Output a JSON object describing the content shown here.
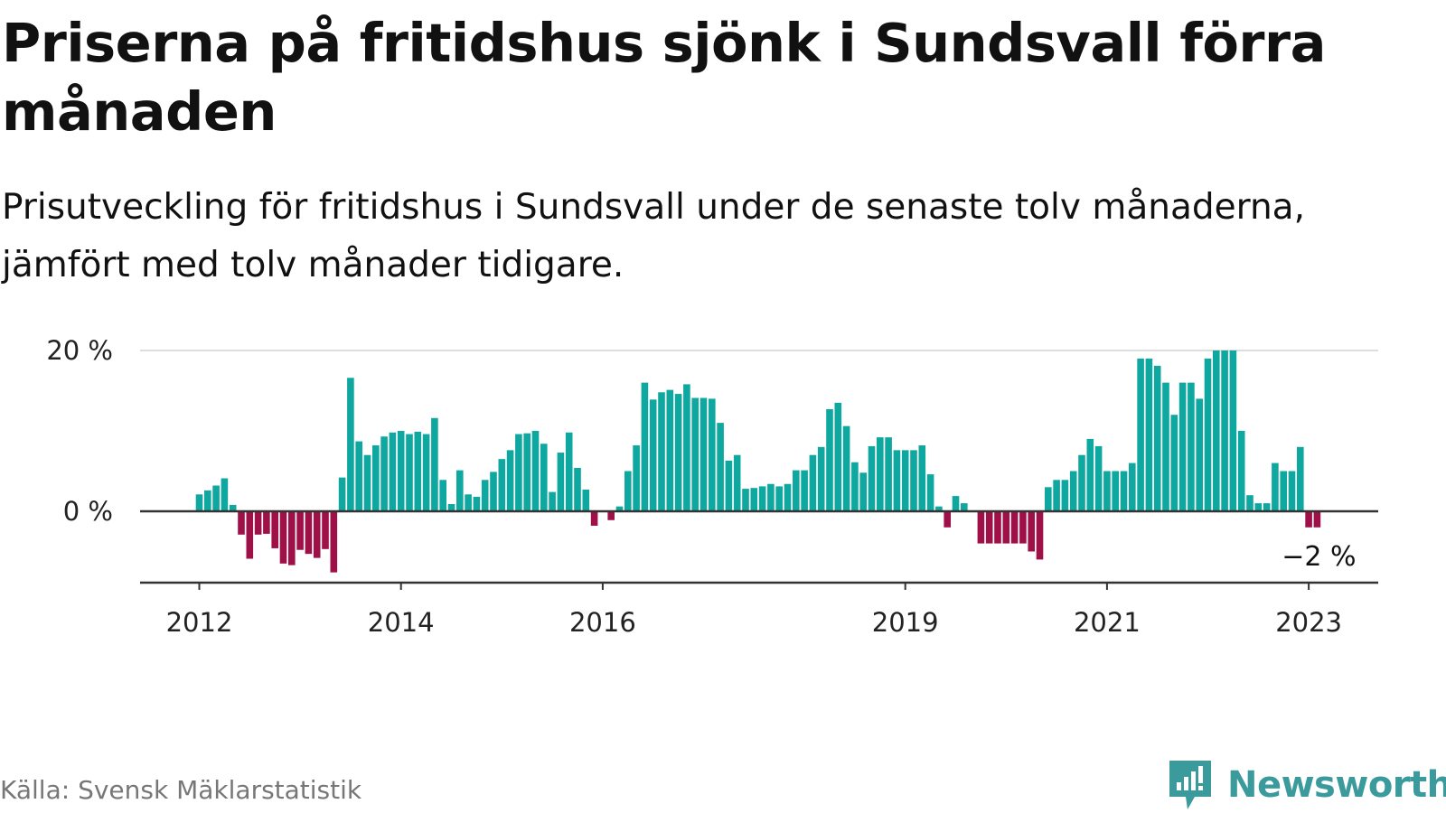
{
  "header": {
    "title": "Priserna på fritidshus sjönk i Sundsvall förra månaden",
    "subtitle": "Prisutveckling för fritidshus i Sundsvall under de senaste tolv månaderna, jämfört med tolv månader tidigare."
  },
  "footer": {
    "source": "Källa: Svensk Mäklarstatistik",
    "brand": "Newsworthy"
  },
  "colors": {
    "positive": "#0fa8a0",
    "negative": "#a01048",
    "brand": "#3b9a9c"
  },
  "chart_data": {
    "type": "bar",
    "title": "Priserna på fritidshus sjönk i Sundsvall förra månaden",
    "subtitle": "Prisutveckling för fritidshus i Sundsvall under de senaste tolv månaderna, jämfört med tolv månader tidigare.",
    "xlabel": "",
    "ylabel": "",
    "x_start": "2012-01",
    "x_end": "2023-03",
    "x_ticks": [
      {
        "label": "2012",
        "date": "2012-01"
      },
      {
        "label": "2014",
        "date": "2014-01"
      },
      {
        "label": "2016",
        "date": "2016-01"
      },
      {
        "label": "2019",
        "date": "2019-01"
      },
      {
        "label": "2021",
        "date": "2021-01"
      },
      {
        "label": "2023",
        "date": "2023-01"
      }
    ],
    "y_ticks": [
      {
        "label": "0 %",
        "value": 0
      },
      {
        "label": "20 %",
        "value": 20
      }
    ],
    "ylim": [
      -9,
      20
    ],
    "grid": true,
    "end_label": {
      "text": "−2 %",
      "date": "2023-02",
      "value": -2
    },
    "series": [
      {
        "values": [
          [
            "2012-01",
            2.1
          ],
          [
            "2012-02",
            2.6
          ],
          [
            "2012-03",
            3.2
          ],
          [
            "2012-04",
            4.1
          ],
          [
            "2012-05",
            0.8
          ],
          [
            "2012-06",
            -2.9
          ],
          [
            "2012-07",
            -5.9
          ],
          [
            "2012-08",
            -2.9
          ],
          [
            "2012-09",
            -2.8
          ],
          [
            "2012-10",
            -4.6
          ],
          [
            "2012-11",
            -6.5
          ],
          [
            "2012-12",
            -6.7
          ],
          [
            "2013-01",
            -4.8
          ],
          [
            "2013-02",
            -5.3
          ],
          [
            "2013-03",
            -5.8
          ],
          [
            "2013-04",
            -4.7
          ],
          [
            "2013-05",
            -7.6
          ],
          [
            "2013-06",
            4.2
          ],
          [
            "2013-07",
            16.6
          ],
          [
            "2013-08",
            8.7
          ],
          [
            "2013-09",
            7.0
          ],
          [
            "2013-10",
            8.2
          ],
          [
            "2013-11",
            9.3
          ],
          [
            "2013-12",
            9.8
          ],
          [
            "2014-01",
            10.0
          ],
          [
            "2014-02",
            9.6
          ],
          [
            "2014-03",
            9.9
          ],
          [
            "2014-04",
            9.6
          ],
          [
            "2014-05",
            11.6
          ],
          [
            "2014-06",
            3.9
          ],
          [
            "2014-07",
            0.9
          ],
          [
            "2014-08",
            5.1
          ],
          [
            "2014-09",
            2.1
          ],
          [
            "2014-10",
            1.8
          ],
          [
            "2014-11",
            3.9
          ],
          [
            "2014-12",
            4.9
          ],
          [
            "2015-01",
            6.5
          ],
          [
            "2015-02",
            7.6
          ],
          [
            "2015-03",
            9.6
          ],
          [
            "2015-04",
            9.7
          ],
          [
            "2015-05",
            10.0
          ],
          [
            "2015-06",
            8.4
          ],
          [
            "2015-07",
            2.4
          ],
          [
            "2015-08",
            7.3
          ],
          [
            "2015-09",
            9.8
          ],
          [
            "2015-10",
            5.4
          ],
          [
            "2015-11",
            2.7
          ],
          [
            "2015-12",
            -1.8
          ],
          [
            "2016-01",
            0.1
          ],
          [
            "2016-02",
            -1.1
          ],
          [
            "2016-03",
            0.6
          ],
          [
            "2016-04",
            5.0
          ],
          [
            "2016-05",
            8.2
          ],
          [
            "2016-06",
            16.0
          ],
          [
            "2016-07",
            13.9
          ],
          [
            "2016-08",
            14.8
          ],
          [
            "2016-09",
            15.1
          ],
          [
            "2016-10",
            14.6
          ],
          [
            "2016-11",
            15.8
          ],
          [
            "2016-12",
            14.1
          ],
          [
            "2017-01",
            14.1
          ],
          [
            "2017-02",
            14.0
          ],
          [
            "2017-03",
            11.0
          ],
          [
            "2017-04",
            6.3
          ],
          [
            "2017-05",
            7.0
          ],
          [
            "2017-06",
            2.8
          ],
          [
            "2017-07",
            2.9
          ],
          [
            "2017-08",
            3.1
          ],
          [
            "2017-09",
            3.4
          ],
          [
            "2017-10",
            3.1
          ],
          [
            "2017-11",
            3.4
          ],
          [
            "2017-12",
            5.1
          ],
          [
            "2018-01",
            5.1
          ],
          [
            "2018-02",
            7.0
          ],
          [
            "2018-03",
            8.0
          ],
          [
            "2018-04",
            12.7
          ],
          [
            "2018-05",
            13.5
          ],
          [
            "2018-06",
            10.6
          ],
          [
            "2018-07",
            6.1
          ],
          [
            "2018-08",
            4.8
          ],
          [
            "2018-09",
            8.1
          ],
          [
            "2018-10",
            9.2
          ],
          [
            "2018-11",
            9.2
          ],
          [
            "2018-12",
            7.6
          ],
          [
            "2019-01",
            7.6
          ],
          [
            "2019-02",
            7.6
          ],
          [
            "2019-03",
            8.2
          ],
          [
            "2019-04",
            4.6
          ],
          [
            "2019-05",
            0.6
          ],
          [
            "2019-06",
            -2.0
          ],
          [
            "2019-07",
            1.9
          ],
          [
            "2019-08",
            1.0
          ],
          [
            "2019-09",
            0.0
          ],
          [
            "2019-10",
            -4.0
          ],
          [
            "2019-11",
            -4.0
          ],
          [
            "2019-12",
            -4.0
          ],
          [
            "2020-01",
            -4.0
          ],
          [
            "2020-02",
            -4.0
          ],
          [
            "2020-03",
            -4.0
          ],
          [
            "2020-04",
            -5.0
          ],
          [
            "2020-05",
            -6.0
          ],
          [
            "2020-06",
            3.0
          ],
          [
            "2020-07",
            3.9
          ],
          [
            "2020-08",
            3.9
          ],
          [
            "2020-09",
            5.0
          ],
          [
            "2020-10",
            7.0
          ],
          [
            "2020-11",
            9.0
          ],
          [
            "2020-12",
            8.1
          ],
          [
            "2021-01",
            5.0
          ],
          [
            "2021-02",
            5.0
          ],
          [
            "2021-03",
            5.0
          ],
          [
            "2021-04",
            6.0
          ],
          [
            "2021-05",
            19.0
          ],
          [
            "2021-06",
            19.0
          ],
          [
            "2021-07",
            18.1
          ],
          [
            "2021-08",
            16.0
          ],
          [
            "2021-09",
            12.0
          ],
          [
            "2021-10",
            16.0
          ],
          [
            "2021-11",
            16.0
          ],
          [
            "2021-12",
            14.0
          ],
          [
            "2022-01",
            19.0
          ],
          [
            "2022-02",
            20.0
          ],
          [
            "2022-03",
            20.0
          ],
          [
            "2022-04",
            20.0
          ],
          [
            "2022-05",
            10.0
          ],
          [
            "2022-06",
            2.0
          ],
          [
            "2022-07",
            1.0
          ],
          [
            "2022-08",
            1.0
          ],
          [
            "2022-09",
            6.0
          ],
          [
            "2022-10",
            5.0
          ],
          [
            "2022-11",
            5.0
          ],
          [
            "2022-12",
            8.0
          ],
          [
            "2023-01",
            -2.0
          ],
          [
            "2023-02",
            -2.0
          ]
        ]
      }
    ]
  }
}
